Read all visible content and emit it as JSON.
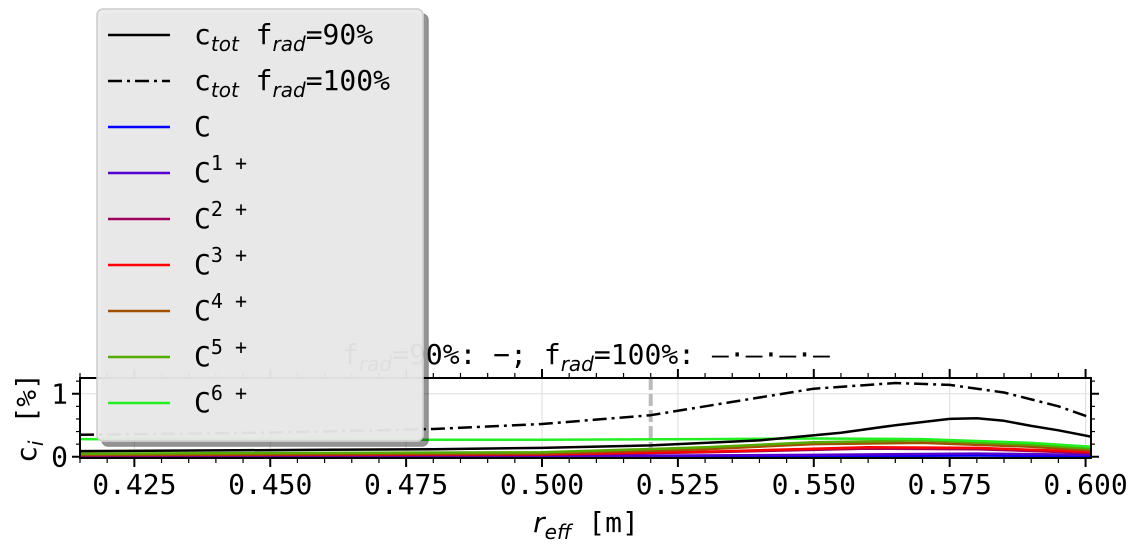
{
  "chart_data": {
    "type": "line",
    "title_parts": {
      "f1": "f",
      "sub1": "rad",
      "v1": "=90%: −; ",
      "f2": "f",
      "sub2": "rad",
      "v2": "=100%: —·—·—·—"
    },
    "xlabel": {
      "base": "r",
      "sub": "eff",
      "unit": " [m]"
    },
    "ylabel": {
      "base": "c",
      "sub": "i",
      "unit": " [%]"
    },
    "xlim": [
      0.415,
      0.601
    ],
    "ylim": [
      -0.02,
      1.25
    ],
    "xticks": [
      "0.425",
      "0.450",
      "0.475",
      "0.500",
      "0.525",
      "0.550",
      "0.575",
      "0.600"
    ],
    "yticks": [
      "0",
      "1"
    ],
    "grid": true,
    "vline_x": 0.52,
    "legend_position": "upper-left",
    "series": [
      {
        "base": "c",
        "sub": "tot",
        "suffix": " f",
        "suffix_sub": "rad",
        "suffix_end": "=90%",
        "color": "#000000",
        "style": "solid",
        "x": [
          0.415,
          0.44,
          0.46,
          0.48,
          0.5,
          0.52,
          0.54,
          0.555,
          0.565,
          0.575,
          0.58,
          0.585,
          0.59,
          0.595,
          0.601
        ],
        "y": [
          0.09,
          0.1,
          0.11,
          0.12,
          0.14,
          0.18,
          0.26,
          0.38,
          0.5,
          0.6,
          0.61,
          0.57,
          0.49,
          0.42,
          0.32
        ]
      },
      {
        "base": "c",
        "sub": "tot",
        "suffix": " f",
        "suffix_sub": "rad",
        "suffix_end": "=100%",
        "color": "#000000",
        "style": "dashdot",
        "x": [
          0.415,
          0.44,
          0.46,
          0.48,
          0.5,
          0.52,
          0.535,
          0.55,
          0.565,
          0.575,
          0.585,
          0.595,
          0.601
        ],
        "y": [
          0.35,
          0.37,
          0.4,
          0.44,
          0.52,
          0.66,
          0.87,
          1.08,
          1.17,
          1.14,
          1.02,
          0.8,
          0.62
        ]
      },
      {
        "base": "C",
        "sup": "",
        "color": "#0000ff",
        "style": "solid",
        "x": [
          0.415,
          0.5,
          0.55,
          0.58,
          0.601
        ],
        "y": [
          0.0,
          0.0,
          0.01,
          0.02,
          0.01
        ]
      },
      {
        "base": "C",
        "sup": "1+",
        "color": "#5500cc",
        "style": "solid",
        "x": [
          0.415,
          0.5,
          0.55,
          0.58,
          0.601
        ],
        "y": [
          0.01,
          0.01,
          0.03,
          0.05,
          0.03
        ]
      },
      {
        "base": "C",
        "sup": "2+",
        "color": "#a0005a",
        "style": "solid",
        "x": [
          0.415,
          0.5,
          0.53,
          0.56,
          0.58,
          0.601
        ],
        "y": [
          0.02,
          0.03,
          0.07,
          0.13,
          0.12,
          0.06
        ]
      },
      {
        "base": "C",
        "sup": "3+",
        "color": "#ff0000",
        "style": "solid",
        "x": [
          0.415,
          0.5,
          0.53,
          0.56,
          0.58,
          0.601
        ],
        "y": [
          0.03,
          0.04,
          0.08,
          0.15,
          0.14,
          0.08
        ]
      },
      {
        "base": "C",
        "sup": "4+",
        "color": "#a05000",
        "style": "solid",
        "x": [
          0.415,
          0.5,
          0.53,
          0.55,
          0.57,
          0.59,
          0.601
        ],
        "y": [
          0.03,
          0.05,
          0.12,
          0.2,
          0.22,
          0.16,
          0.1
        ]
      },
      {
        "base": "C",
        "sup": "5+",
        "color": "#55aa00",
        "style": "solid",
        "x": [
          0.415,
          0.5,
          0.53,
          0.55,
          0.57,
          0.59,
          0.601
        ],
        "y": [
          0.05,
          0.07,
          0.15,
          0.23,
          0.26,
          0.19,
          0.13
        ]
      },
      {
        "base": "C",
        "sup": "6+",
        "color": "#22ee22",
        "style": "solid",
        "x": [
          0.415,
          0.45,
          0.5,
          0.53,
          0.55,
          0.57,
          0.59,
          0.601
        ],
        "y": [
          0.28,
          0.27,
          0.27,
          0.28,
          0.29,
          0.28,
          0.22,
          0.16
        ]
      }
    ]
  }
}
